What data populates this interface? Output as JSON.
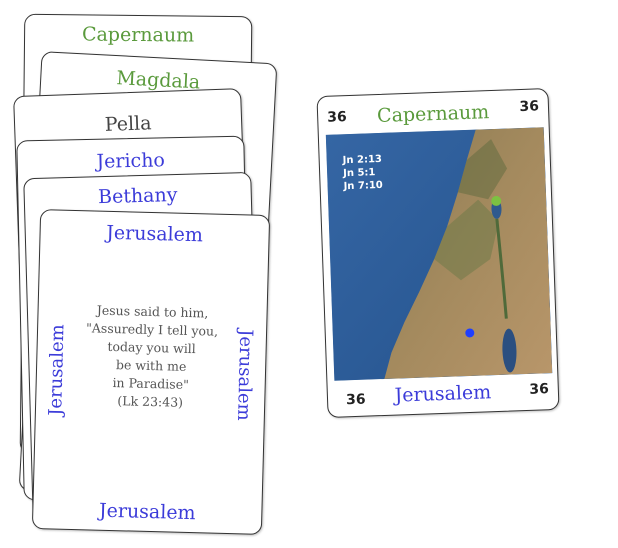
{
  "stack": [
    {
      "title": "Capernaum"
    },
    {
      "title": "Magdala"
    },
    {
      "title": "Pella"
    },
    {
      "title": "Jericho"
    },
    {
      "title": "Bethany"
    }
  ],
  "front_card": {
    "title_top": "Jerusalem",
    "title_bottom": "Jerusalem",
    "side_left": "Jerusalem",
    "side_right": "Jerusalem",
    "quote_lines": [
      "Jesus said to him,",
      "\"Assuredly I tell you,",
      "today you will",
      "be with me",
      "in Paradise\"",
      "(Lk 23:43)"
    ]
  },
  "map_card": {
    "number_tl": "36",
    "number_tr": "36",
    "number_bl": "36",
    "number_br": "36",
    "title_top": "Capernaum",
    "title_bottom": "Jerusalem",
    "references": [
      "Jn 2:13",
      "Jn 5:1",
      "Jn 7:10"
    ],
    "marker_colors": {
      "start": "#7dc142",
      "end": "#1f3fff"
    }
  },
  "colors": {
    "green": "#5a9a3c",
    "blue": "#3b3bd9",
    "dark": "#444444"
  }
}
